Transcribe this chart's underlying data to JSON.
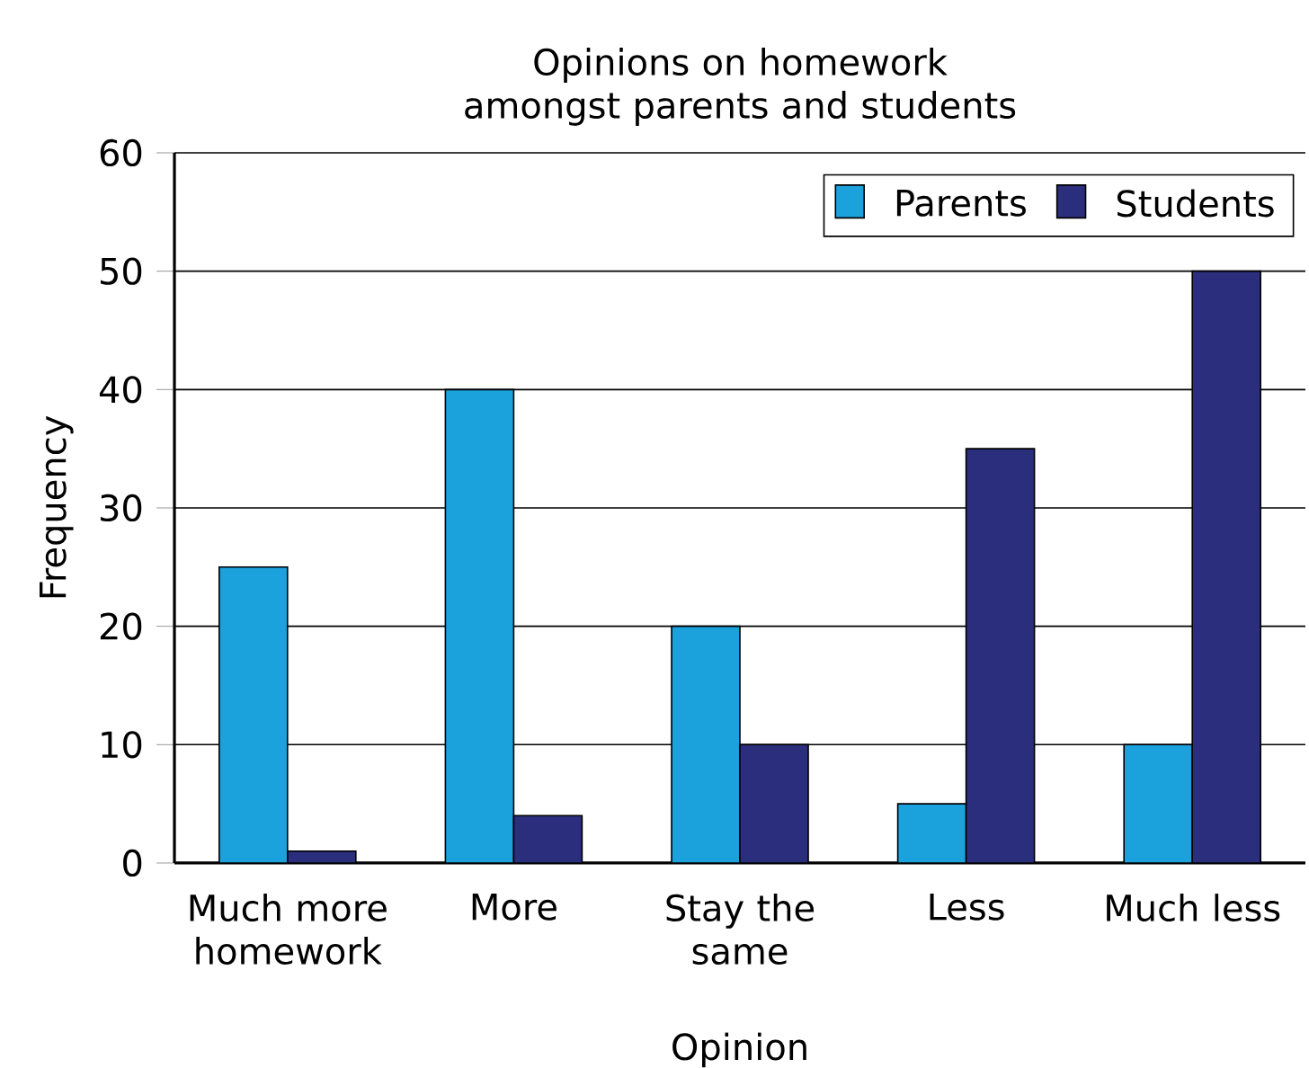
{
  "chart_data": {
    "type": "bar",
    "title": "Opinions on homework amongst parents and students",
    "xlabel": "Opinion",
    "ylabel": "Frequency",
    "categories": [
      "Much more homework",
      "More",
      "Stay the same",
      "Less",
      "Much less"
    ],
    "series": [
      {
        "name": "Parents",
        "color": "#1ba1dc",
        "values": [
          25,
          40,
          20,
          5,
          10
        ]
      },
      {
        "name": "Students",
        "color": "#2b2e7c",
        "values": [
          1,
          4,
          10,
          35,
          50
        ]
      }
    ],
    "ylim": [
      0,
      60
    ],
    "yticks": [
      0,
      10,
      20,
      30,
      40,
      50,
      60
    ],
    "grid": "y",
    "legend": "top right"
  }
}
